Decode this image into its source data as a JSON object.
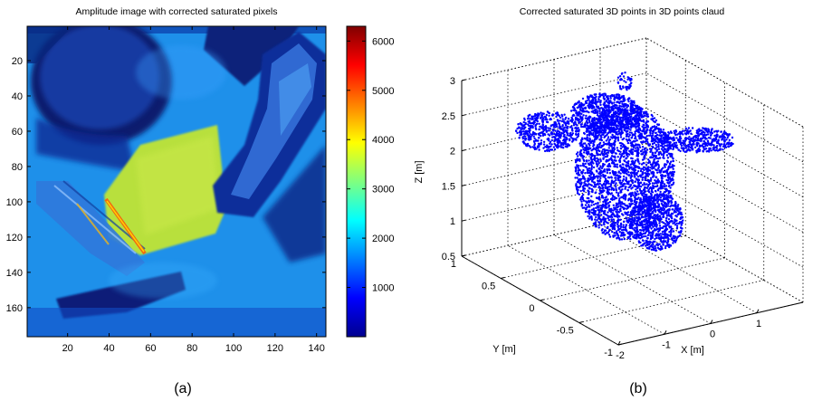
{
  "panels": [
    {
      "letter": "(a)",
      "chart_data": {
        "type": "heatmap",
        "title": "Amplitude image with corrected saturated pixels",
        "xlabel": "",
        "ylabel": "",
        "xlim": [
          0.5,
          144.5
        ],
        "ylim": [
          0.5,
          176.5
        ],
        "xticks": [
          20,
          40,
          60,
          80,
          100,
          120,
          140
        ],
        "yticks": [
          20,
          40,
          60,
          80,
          100,
          120,
          140,
          160
        ],
        "colorbar": {
          "clim": [
            0,
            6300
          ],
          "ticks": [
            1000,
            2000,
            3000,
            4000,
            5000,
            6000
          ],
          "colormap": "jet"
        },
        "regions": [
          {
            "label": "background floor",
            "value": 1650
          },
          {
            "label": "yellow-green target board",
            "value": 3100
          },
          {
            "label": "dark objects / shadows",
            "value": 500
          },
          {
            "label": "saturated strip (orange-red)",
            "value": 5200
          }
        ]
      }
    },
    {
      "letter": "(b)",
      "chart_data": {
        "type": "scatter",
        "title": "Corrected saturated 3D points in 3D points claud",
        "xlabel": "X [m]",
        "ylabel": "Y [m]",
        "zlabel": "Z [m]",
        "xlim": [
          -2,
          2
        ],
        "ylim": [
          -1,
          1
        ],
        "zlim": [
          0.5,
          3
        ],
        "xticks": [
          -2,
          -1,
          0,
          1
        ],
        "yticks": [
          -1,
          -0.5,
          0,
          0.5,
          1
        ],
        "zticks": [
          0.5,
          1,
          1.5,
          2,
          2.5,
          3
        ],
        "grid": "dotted",
        "marker_color": "#0000ff",
        "points_cluster": {
          "description": "dense blue point cloud",
          "x_range": [
            -1.5,
            1.5
          ],
          "y_range": [
            -0.5,
            1
          ],
          "z_range": [
            0.6,
            2.9
          ]
        }
      }
    }
  ],
  "colors": {
    "marker": "#0000ff",
    "axes": "#000000",
    "background": "#ffffff"
  }
}
